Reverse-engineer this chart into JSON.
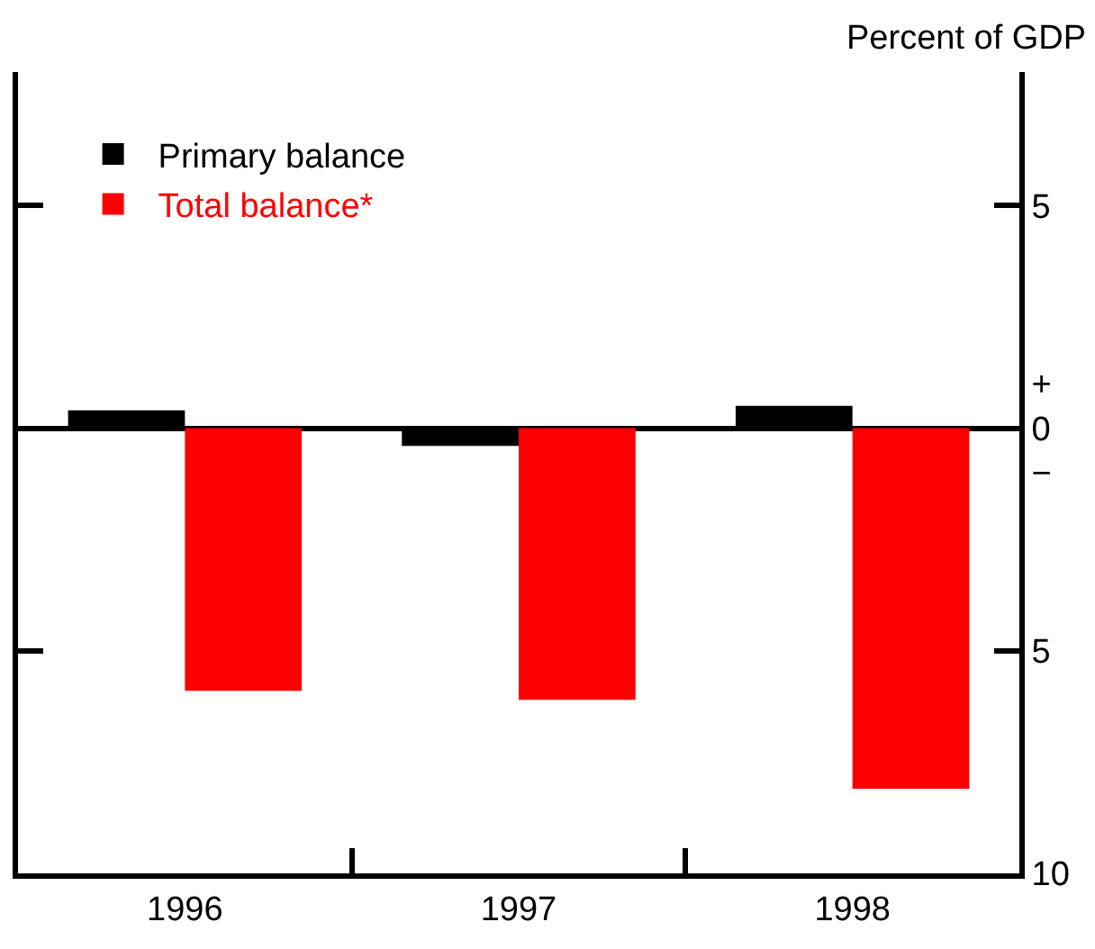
{
  "chart_data": {
    "type": "bar",
    "ylabel": "Percent of GDP",
    "categories": [
      "1996",
      "1997",
      "1998"
    ],
    "series": [
      {
        "name": "Primary balance",
        "color": "#000000",
        "values": [
          0.4,
          -0.4,
          0.5
        ]
      },
      {
        "name": "Total balance*",
        "color": "#ff0000",
        "values": [
          -5.9,
          -6.1,
          -8.1
        ]
      }
    ],
    "ylim": [
      -10,
      8
    ],
    "yticks": [
      5,
      {
        "value": 0,
        "label": "+\n0\n−"
      },
      {
        "value": -5,
        "label": "5"
      },
      {
        "value": -10,
        "label": "10"
      }
    ],
    "legend": "top left"
  }
}
